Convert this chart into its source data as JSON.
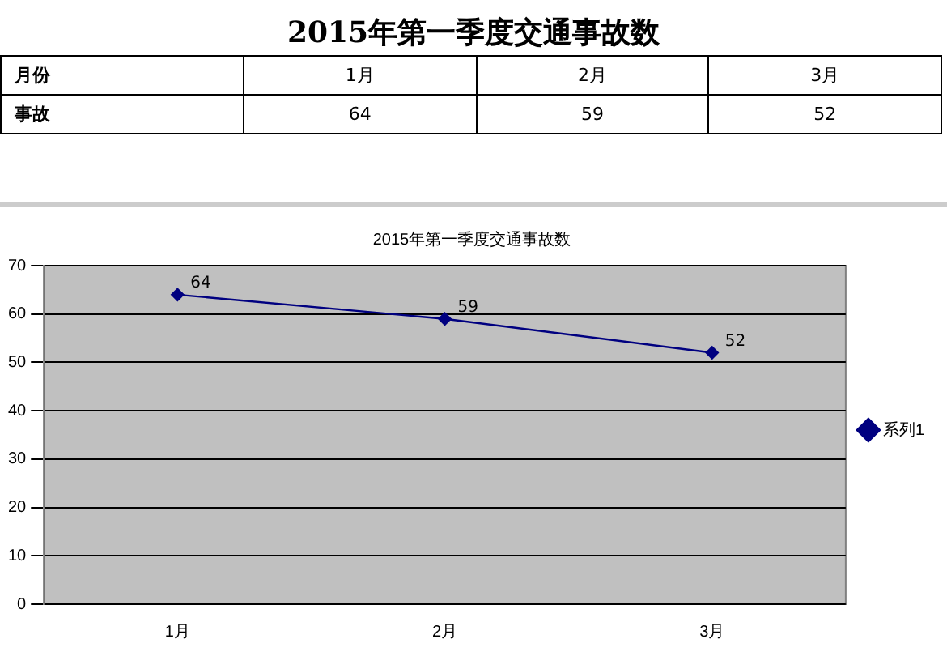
{
  "chart_data": [
    {
      "type": "other",
      "title": "2015年第一季度交通事故数",
      "categories": [
        "1月",
        "2月",
        "3月"
      ],
      "values": [
        64,
        59,
        52
      ],
      "data_labels": true,
      "annotations": [
        "月份",
        "事故"
      ]
    },
    {
      "type": "line",
      "title": "2015年第一季度交通事故数",
      "categories": [
        "1月",
        "2月",
        "3月"
      ],
      "series": [
        {
          "name": "系列1",
          "color": "#000080",
          "values": [
            64,
            59,
            52
          ]
        }
      ],
      "ylim": [
        0,
        70
      ],
      "yticks": [
        0,
        10,
        20,
        30,
        40,
        50,
        60,
        70
      ],
      "grid": "y",
      "legend": "right",
      "marker": "diamond",
      "data_labels": true
    }
  ]
}
